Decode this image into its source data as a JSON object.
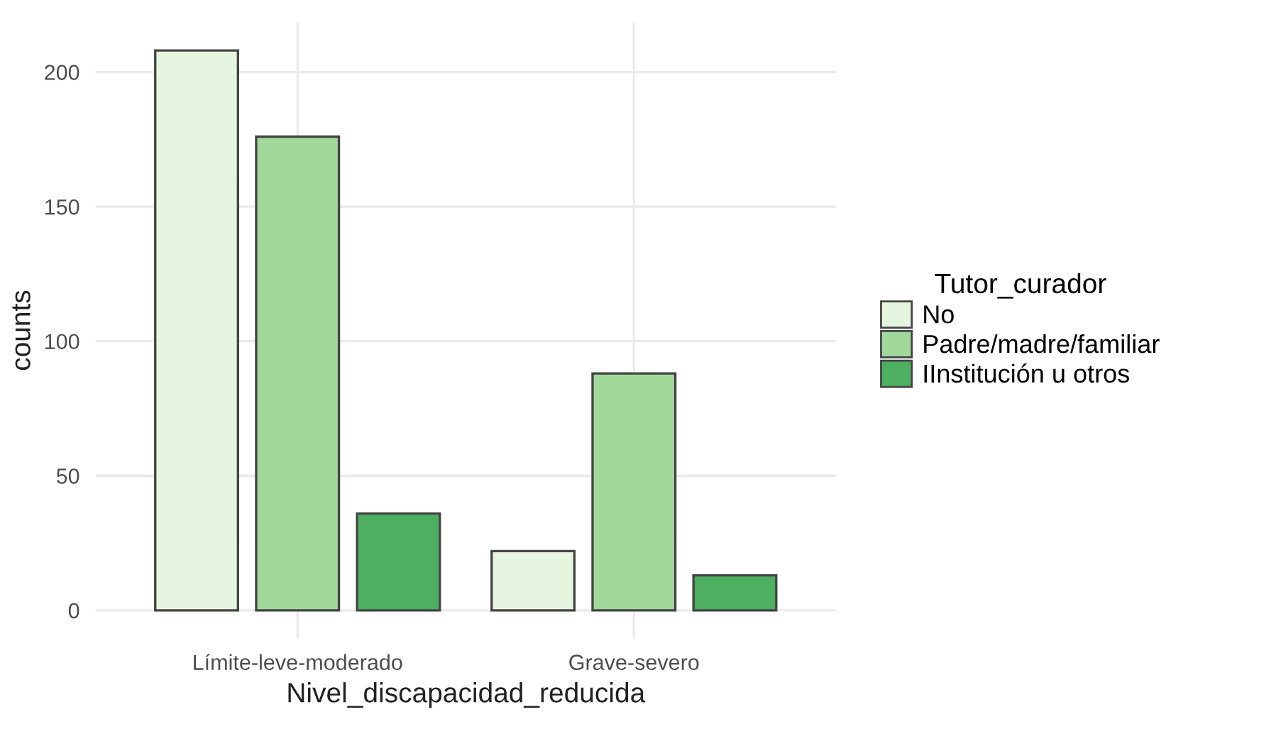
{
  "chart_data": {
    "type": "bar",
    "xlabel": "Nivel_discapacidad_reducida",
    "ylabel": "counts",
    "legend_title": "Tutor_curador",
    "categories": [
      "Límite-leve-moderado",
      "Grave-severo"
    ],
    "series": [
      {
        "name": "No",
        "color": "#e5f5e0",
        "values": [
          208,
          22
        ]
      },
      {
        "name": "Padre/madre/familiar",
        "color": "#a1d99b",
        "values": [
          176,
          88
        ]
      },
      {
        "name": "IInstitución u otros",
        "color": "#4daf60",
        "values": [
          36,
          13
        ]
      }
    ],
    "ylim": [
      -10.4,
      218.4
    ],
    "yticks": [
      0,
      50,
      100,
      150,
      200
    ],
    "grid": true,
    "legend": "right"
  }
}
